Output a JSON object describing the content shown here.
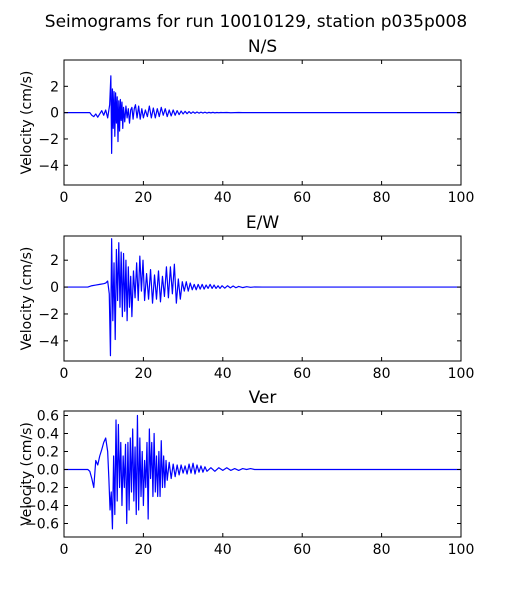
{
  "figure": {
    "suptitle": "Seimograms for run 10010129, station p035p008"
  },
  "chart_data": [
    {
      "type": "line",
      "title": "N/S",
      "xlabel": "",
      "ylabel": "Velocity (cm/s)",
      "xlim": [
        0,
        100
      ],
      "ylim": [
        -5.5,
        4
      ],
      "xticks": [
        0,
        20,
        40,
        60,
        80,
        100
      ],
      "yticks": [
        -4,
        -2,
        0,
        2
      ],
      "ytick_labels": [
        "−4",
        "−2",
        "0",
        "2"
      ],
      "xtick_labels": [
        "0",
        "20",
        "40",
        "60",
        "80",
        "100"
      ],
      "grid": false,
      "color": "#0000ff",
      "series": [
        {
          "x": [
            0,
            5,
            6.5,
            7,
            7.5,
            8,
            8.5,
            9,
            9.5,
            10,
            10.5,
            11,
            11.5,
            11.8,
            12.0,
            12.2,
            12.4,
            12.6,
            12.8,
            13.0,
            13.2,
            13.4,
            13.6,
            13.8,
            14.0,
            14.2,
            14.4,
            14.6,
            14.8,
            15.0,
            15.3,
            15.6,
            15.9,
            16.2,
            16.5,
            16.8,
            17.1,
            17.4,
            17.7,
            18.0,
            18.4,
            18.8,
            19.2,
            19.6,
            20.0,
            20.5,
            21.0,
            21.5,
            22.0,
            22.5,
            23.0,
            23.5,
            24.0,
            24.5,
            25.0,
            25.5,
            26.0,
            26.5,
            27.0,
            27.5,
            28.0,
            28.5,
            29.0,
            29.5,
            30.0,
            30.5,
            31.0,
            31.5,
            32.0,
            32.5,
            33.0,
            33.5,
            34.0,
            34.5,
            35.0,
            35.5,
            36.0,
            36.5,
            37.0,
            37.5,
            38.0,
            38.5,
            39.0,
            39.5,
            40.0,
            41,
            42,
            43,
            44,
            45,
            46,
            48,
            50,
            60,
            80,
            100
          ],
          "y": [
            0,
            0,
            0,
            -0.2,
            -0.3,
            -0.1,
            -0.35,
            -0.1,
            0.15,
            -0.2,
            0.2,
            -0.4,
            0.6,
            2.8,
            -3.1,
            1.8,
            -1.2,
            1.6,
            -1.8,
            1.5,
            -0.8,
            1.2,
            -2.2,
            0.9,
            -1.4,
            1.0,
            -0.6,
            0.8,
            -1.2,
            0.4,
            -0.7,
            0.5,
            -0.4,
            0.3,
            -0.8,
            0.2,
            0.4,
            -0.5,
            0.3,
            0.6,
            -0.4,
            0.5,
            -0.5,
            0.3,
            -0.4,
            0.2,
            -0.3,
            0.5,
            -0.4,
            0.35,
            -0.4,
            0.3,
            -0.3,
            0.4,
            -0.2,
            0.3,
            -0.3,
            0.2,
            -0.25,
            0.2,
            -0.2,
            0.15,
            -0.15,
            0.12,
            -0.1,
            0.1,
            -0.08,
            0.08,
            -0.06,
            0.06,
            -0.05,
            0.05,
            -0.04,
            0.04,
            -0.03,
            0.03,
            -0.03,
            0.02,
            -0.02,
            0.02,
            -0.02,
            0.01,
            -0.01,
            0.01,
            0,
            0.01,
            -0.01,
            0,
            0.01,
            0,
            0,
            0,
            0,
            0,
            0,
            0
          ]
        }
      ]
    },
    {
      "type": "line",
      "title": "E/W",
      "xlabel": "",
      "ylabel": "Velocity (cm/s)",
      "xlim": [
        0,
        100
      ],
      "ylim": [
        -5.5,
        3.8
      ],
      "xticks": [
        0,
        20,
        40,
        60,
        80,
        100
      ],
      "yticks": [
        -4,
        -2,
        0,
        2
      ],
      "ytick_labels": [
        "−4",
        "−2",
        "0",
        "2"
      ],
      "xtick_labels": [
        "0",
        "20",
        "40",
        "60",
        "80",
        "100"
      ],
      "grid": false,
      "color": "#0000ff",
      "series": [
        {
          "x": [
            0,
            6,
            7,
            8,
            9,
            10,
            10.5,
            11,
            11.4,
            11.7,
            12.0,
            12.3,
            12.6,
            12.9,
            13.2,
            13.5,
            13.8,
            14.1,
            14.4,
            14.7,
            15.0,
            15.3,
            15.6,
            15.9,
            16.2,
            16.5,
            16.8,
            17.1,
            17.5,
            17.9,
            18.3,
            18.7,
            19.1,
            19.5,
            19.9,
            20.3,
            20.8,
            21.3,
            21.8,
            22.3,
            22.8,
            23.3,
            23.8,
            24.3,
            24.8,
            25.3,
            25.8,
            26.3,
            26.8,
            27.3,
            27.8,
            28.3,
            28.8,
            29.3,
            29.8,
            30.3,
            30.8,
            31.3,
            31.8,
            32.3,
            32.8,
            33.3,
            33.8,
            34.3,
            34.8,
            35.3,
            35.8,
            36.3,
            36.8,
            37.3,
            37.8,
            38.3,
            38.8,
            39.3,
            39.8,
            40.5,
            41.2,
            41.9,
            42.6,
            43.3,
            44,
            45,
            46,
            47,
            48,
            50,
            60,
            80,
            100
          ],
          "y": [
            0,
            0,
            0.1,
            0.15,
            0.2,
            0.25,
            0.3,
            0.45,
            -0.5,
            -5.1,
            3.6,
            -2.5,
            1.8,
            -3.9,
            2.8,
            -1.0,
            3.3,
            -1.5,
            2.6,
            -2.2,
            2.5,
            -1.8,
            2.0,
            -2.5,
            1.5,
            -1.5,
            0.8,
            -2.2,
            1.2,
            -0.8,
            1.8,
            -1.0,
            2.3,
            -0.3,
            2.0,
            -1.0,
            1.0,
            -0.9,
            1.3,
            -1.2,
            0.9,
            -0.9,
            1.2,
            -1.1,
            0.8,
            -0.7,
            1.5,
            -0.8,
            1.5,
            -0.5,
            1.7,
            -1.2,
            0.6,
            -0.9,
            0.4,
            -0.3,
            0.4,
            -0.3,
            0.3,
            -0.2,
            0.2,
            -0.2,
            0.2,
            -0.15,
            0.2,
            -0.15,
            0.15,
            -0.1,
            0.2,
            -0.1,
            0.15,
            -0.1,
            0.1,
            -0.1,
            0.1,
            -0.08,
            0.1,
            -0.06,
            0.08,
            -0.05,
            0.05,
            -0.04,
            0.03,
            -0.02,
            0.01,
            0,
            0,
            0,
            0
          ]
        }
      ]
    },
    {
      "type": "line",
      "title": "Ver",
      "xlabel": "",
      "ylabel": "Velocity (cm/s)",
      "xlim": [
        0,
        100
      ],
      "ylim": [
        -0.75,
        0.65
      ],
      "xticks": [
        0,
        20,
        40,
        60,
        80,
        100
      ],
      "yticks": [
        -0.6,
        -0.4,
        -0.2,
        0.0,
        0.2,
        0.4,
        0.6
      ],
      "ytick_labels": [
        "−0.6",
        "−0.4",
        "−0.2",
        "0.0",
        "0.2",
        "0.4",
        "0.6"
      ],
      "xtick_labels": [
        "0",
        "20",
        "40",
        "60",
        "80",
        "100"
      ],
      "grid": false,
      "color": "#0000ff",
      "series": [
        {
          "x": [
            0,
            6,
            6.5,
            7,
            7.5,
            8,
            8.5,
            9,
            9.5,
            10,
            10.5,
            11,
            11.3,
            11.6,
            11.9,
            12.2,
            12.5,
            12.8,
            13.1,
            13.4,
            13.7,
            14.0,
            14.3,
            14.6,
            14.9,
            15.2,
            15.5,
            15.8,
            16.1,
            16.4,
            16.7,
            17.0,
            17.3,
            17.6,
            17.9,
            18.2,
            18.5,
            18.8,
            19.1,
            19.4,
            19.7,
            20.0,
            20.3,
            20.6,
            20.9,
            21.2,
            21.5,
            21.8,
            22.1,
            22.4,
            22.7,
            23.0,
            23.3,
            23.6,
            23.9,
            24.2,
            24.5,
            24.8,
            25.1,
            25.4,
            25.7,
            26.0,
            26.5,
            27.0,
            27.5,
            28.0,
            28.5,
            29.0,
            29.5,
            30.0,
            30.5,
            31.0,
            31.5,
            32.0,
            32.5,
            33.0,
            33.5,
            34.0,
            34.5,
            35.0,
            35.5,
            36.0,
            37,
            38,
            39,
            40,
            41,
            42,
            43,
            44,
            45,
            46,
            47,
            48,
            50,
            60,
            80,
            100
          ],
          "y": [
            0,
            0,
            -0.02,
            -0.1,
            -0.2,
            0.1,
            0.05,
            0.15,
            0.22,
            0.3,
            0.35,
            0.2,
            -0.1,
            -0.45,
            -0.25,
            -0.66,
            0.15,
            -0.5,
            0.55,
            -0.35,
            0.5,
            -0.2,
            0.3,
            -0.4,
            0.15,
            -0.2,
            0.28,
            -0.6,
            0.3,
            -0.45,
            0.35,
            -0.25,
            0.45,
            -0.35,
            0.25,
            -0.5,
            0.6,
            -0.45,
            0.35,
            -0.3,
            0.2,
            -0.4,
            0.1,
            -0.2,
            0.3,
            -0.55,
            0.45,
            -0.1,
            0.3,
            -0.3,
            0.4,
            -0.25,
            0.15,
            -0.3,
            0.2,
            -0.3,
            0.32,
            -0.2,
            0.15,
            -0.2,
            0.1,
            -0.12,
            0.08,
            -0.1,
            0.06,
            -0.08,
            0.05,
            -0.06,
            0.05,
            -0.04,
            0.04,
            -0.05,
            0.06,
            -0.04,
            0.07,
            -0.05,
            0.05,
            -0.03,
            0.04,
            -0.03,
            0.03,
            -0.02,
            0.02,
            -0.02,
            0.02,
            -0.01,
            0.02,
            -0.01,
            0.01,
            -0.01,
            0.01,
            0,
            0.01,
            0,
            0,
            0,
            0,
            0
          ]
        }
      ]
    }
  ]
}
